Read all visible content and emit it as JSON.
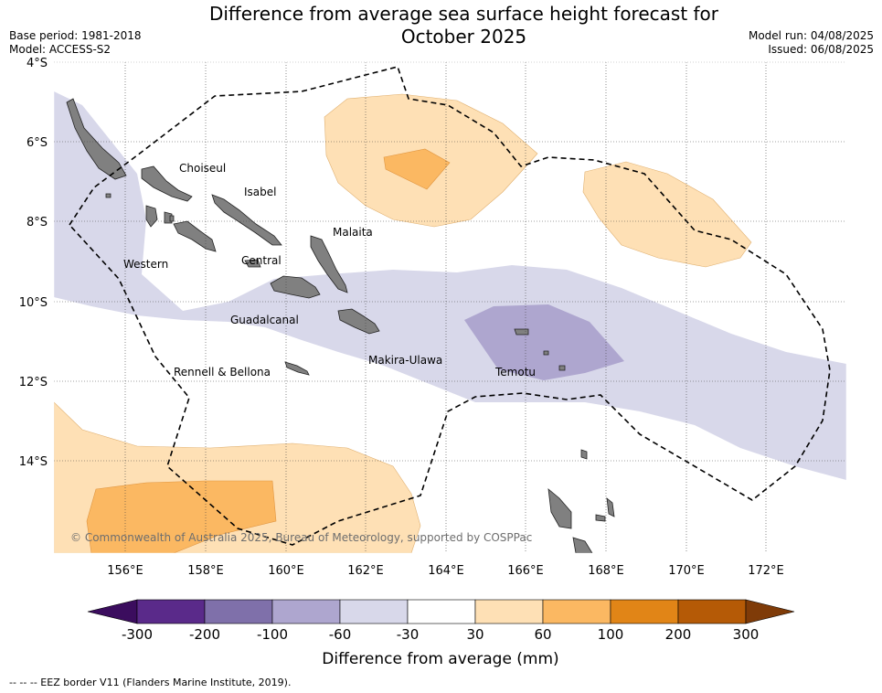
{
  "title_line1": "Difference from average sea surface height forecast for",
  "title_line2": "October 2025",
  "base_period": "Base period: 1981-2018",
  "model": "Model: ACCESS-S2",
  "model_run": "Model run: 04/08/2025",
  "issued": "Issued: 06/08/2025",
  "axes": {
    "lat_ticks": [
      "4°S",
      "6°S",
      "8°S",
      "10°S",
      "12°S",
      "14°S"
    ],
    "lon_ticks": [
      "156°E",
      "158°E",
      "160°E",
      "162°E",
      "164°E",
      "166°E",
      "168°E",
      "170°E",
      "172°E"
    ]
  },
  "provinces": [
    "Choiseul",
    "Isabel",
    "Malaita",
    "Western",
    "Central",
    "Guadalcanal",
    "Makira-Ulawa",
    "Rennell & Bellona",
    "Temotu"
  ],
  "copyright": "© Commonwealth of Australia 2025, Bureau of Meteorology, supported by COSPPac",
  "legend": {
    "title": "Difference from average (mm)",
    "ticks": [
      "-300",
      "-200",
      "-100",
      "-60",
      "-30",
      "30",
      "60",
      "100",
      "200",
      "300"
    ],
    "colors": [
      "#3b0d5e",
      "#5a2a8a",
      "#7f70aa",
      "#aea6cf",
      "#d8d8ea",
      "#ffffff",
      "#fee0b5",
      "#fbb862",
      "#e18517",
      "#b55a06",
      "#7f3b08"
    ]
  },
  "footer": "-- -- -- EEZ border V11 (Flanders Marine Institute, 2019)."
}
